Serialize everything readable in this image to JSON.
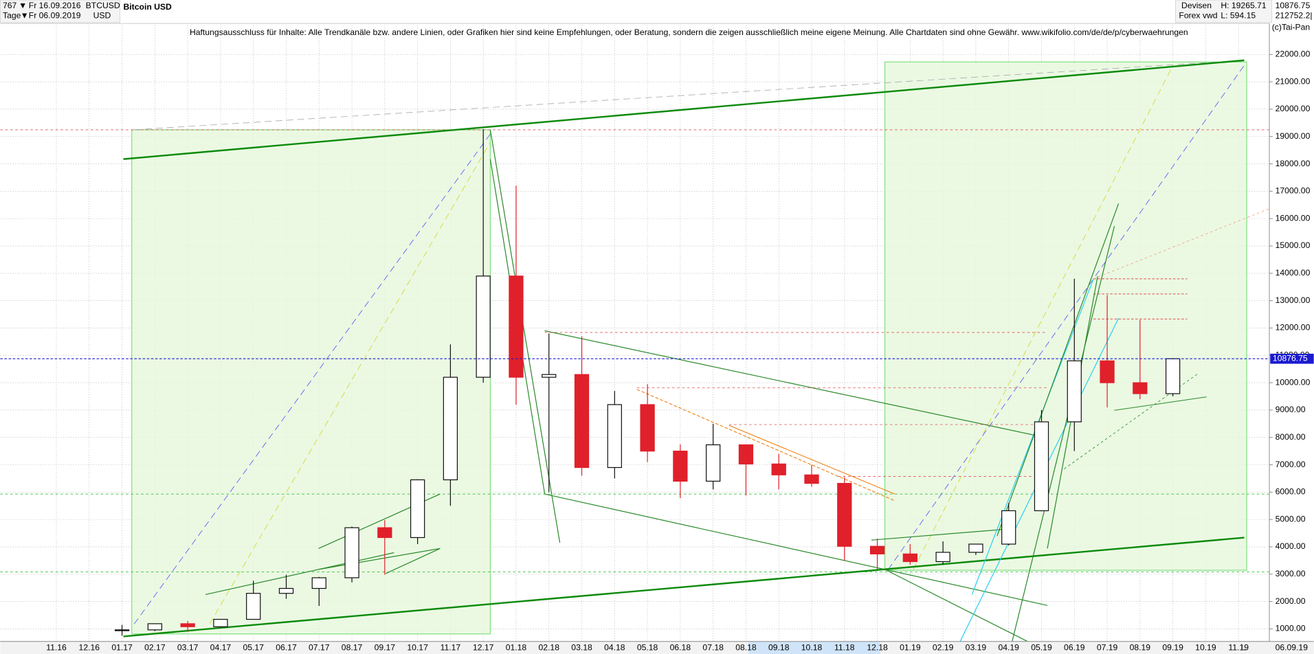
{
  "header": {
    "bars": "767",
    "start": "Fr 16.09.2016",
    "symbol": "BTCUSD",
    "period": "Tage",
    "end": "Fr 06.09.2019",
    "currency": "USD",
    "market": "Devisen",
    "source": "Forex vwd",
    "high": "H: 19265.71",
    "low": "L: 594.15",
    "volume": "212752.2|",
    "copyright": "(c)Tai-Pan",
    "date": "06.09.19",
    "scale_mode": "L",
    "disclaimer": "Haftungsausschluss für Inhalte: Alle Trendkanäle bzw. andere Linien, oder Grafiken hier sind keine Empfehlungen, oder Beratung, sondern die zeigen ausschließlich meine eigene Meinung. Alle Chartdaten sind ohne Gewähr.  www.wikifolio.com/de/de/p/cyberwaehrungen"
  },
  "chart_data": {
    "type": "candlestick",
    "title": "Bitcoin USD",
    "current_price": 10876.75,
    "categories": [
      "11.16",
      "12.16",
      "01.17",
      "02.17",
      "03.17",
      "04.17",
      "05.17",
      "06.17",
      "07.17",
      "08.17",
      "09.17",
      "10.17",
      "11.17",
      "12.17",
      "01.18",
      "02.18",
      "03.18",
      "04.18",
      "05.18",
      "06.18",
      "07.18",
      "08.18",
      "09.18",
      "10.18",
      "11.18",
      "12.18",
      "01.19",
      "02.19",
      "03.19",
      "04.19",
      "05.19",
      "06.19",
      "07.19",
      "08.19",
      "09.19",
      "10.19",
      "11.19"
    ],
    "open": [
      null,
      null,
      960,
      965,
      1190,
      1080,
      1350,
      2300,
      2480,
      2870,
      4700,
      4340,
      6450,
      10200,
      13900,
      10200,
      10300,
      6900,
      9200,
      7500,
      6400,
      7730,
      7030,
      6630,
      6320,
      4020,
      3740,
      3460,
      3800,
      4100,
      5320,
      8570,
      10800,
      10000,
      9600,
      null,
      null
    ],
    "high": [
      null,
      null,
      1150,
      1200,
      1290,
      1350,
      2760,
      2980,
      2900,
      4740,
      4980,
      6470,
      11400,
      19265,
      17200,
      11800,
      11700,
      9700,
      9950,
      7750,
      8500,
      7750,
      7400,
      7000,
      6550,
      4300,
      4100,
      4200,
      4100,
      5600,
      9000,
      13800,
      13200,
      12300,
      10900,
      null,
      null
    ],
    "low": [
      null,
      null,
      750,
      920,
      890,
      1060,
      1350,
      2100,
      1840,
      2700,
      2980,
      4100,
      5500,
      10000,
      9200,
      6000,
      6600,
      6500,
      7100,
      5780,
      6100,
      5880,
      6100,
      6200,
      3500,
      3150,
      3350,
      3360,
      3700,
      4050,
      5300,
      7500,
      9100,
      9400,
      9500,
      null,
      null
    ],
    "close": [
      null,
      null,
      965,
      1190,
      1080,
      1350,
      2300,
      2480,
      2870,
      4700,
      4340,
      6450,
      10200,
      13900,
      10200,
      10300,
      6900,
      9200,
      7500,
      6400,
      7730,
      7030,
      6630,
      6320,
      4020,
      3740,
      3460,
      3800,
      4100,
      5320,
      8570,
      10800,
      10000,
      9600,
      10876.75,
      null,
      null
    ],
    "up_color": "#111111",
    "down_color": "#e0202a",
    "price_line_color": "#1a1ad0",
    "ylim": [
      600,
      23100
    ],
    "yticks": [
      {
        "value": 1000,
        "label": "1000.00"
      },
      {
        "value": 2000,
        "label": "2000.00"
      },
      {
        "value": 3000,
        "label": "3000.00"
      },
      {
        "value": 4000,
        "label": "4000.00"
      },
      {
        "value": 5000,
        "label": "5000.00"
      },
      {
        "value": 6000,
        "label": "6000.00"
      },
      {
        "value": 7000,
        "label": "7000.00"
      },
      {
        "value": 8000,
        "label": "8000.00"
      },
      {
        "value": 9000,
        "label": "9000.00"
      },
      {
        "value": 10000,
        "label": "10000.00"
      },
      {
        "value": 11000,
        "label": "11000.00"
      },
      {
        "value": 12000,
        "label": "12000.00"
      },
      {
        "value": 13000,
        "label": "13000.00"
      },
      {
        "value": 14000,
        "label": "14000.00"
      },
      {
        "value": 15000,
        "label": "15000.00"
      },
      {
        "value": 16000,
        "label": "16000.00"
      },
      {
        "value": 17000,
        "label": "17000.00"
      },
      {
        "value": 18000,
        "label": "18000.00"
      },
      {
        "value": 19000,
        "label": "19000.00"
      },
      {
        "value": 20000,
        "label": "20000.00"
      },
      {
        "value": 21000,
        "label": "21000.00"
      },
      {
        "value": 22000,
        "label": "22000.00"
      }
    ],
    "grid": true
  }
}
